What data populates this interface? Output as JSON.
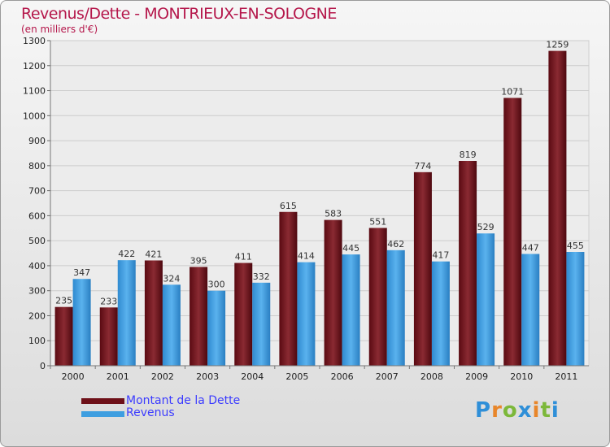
{
  "header": {
    "title": "Revenus/Dette - MONTRIEUX-EN-SOLOGNE",
    "subtitle": "(en milliers d'€)"
  },
  "colors": {
    "debt": "#6e1018",
    "revenue": "#3e9ee0",
    "title": "#b5174b",
    "legend_text": "#3b3bff"
  },
  "chart_data": {
    "type": "bar",
    "title": "Revenus/Dette - MONTRIEUX-EN-SOLOGNE",
    "ylabel": "(en milliers d'€)",
    "xlabel": "",
    "categories": [
      "2000",
      "2001",
      "2002",
      "2003",
      "2004",
      "2005",
      "2006",
      "2007",
      "2008",
      "2009",
      "2010",
      "2011"
    ],
    "series": [
      {
        "name": "Montant de la Dette",
        "values": [
          235,
          233,
          421,
          395,
          411,
          615,
          583,
          551,
          774,
          819,
          1071,
          1259
        ]
      },
      {
        "name": "Revenus",
        "values": [
          347,
          422,
          324,
          300,
          332,
          414,
          445,
          462,
          417,
          529,
          447,
          455
        ]
      }
    ],
    "ylim": [
      0,
      1300
    ],
    "yticks": [
      0,
      100,
      200,
      300,
      400,
      500,
      600,
      700,
      800,
      900,
      1000,
      1100,
      1200,
      1300
    ],
    "grid": true,
    "legend": "bottom-left"
  },
  "legend": {
    "items": [
      {
        "label": "Montant de la Dette"
      },
      {
        "label": "Revenus"
      }
    ]
  },
  "logo": {
    "letters": [
      "P",
      "r",
      "o",
      "x",
      "i",
      "t",
      "i"
    ],
    "colors": [
      "#2f8fd8",
      "#e8862a",
      "#7cb83a",
      "#2f8fd8",
      "#e8862a",
      "#7cb83a",
      "#2f8fd8"
    ]
  }
}
